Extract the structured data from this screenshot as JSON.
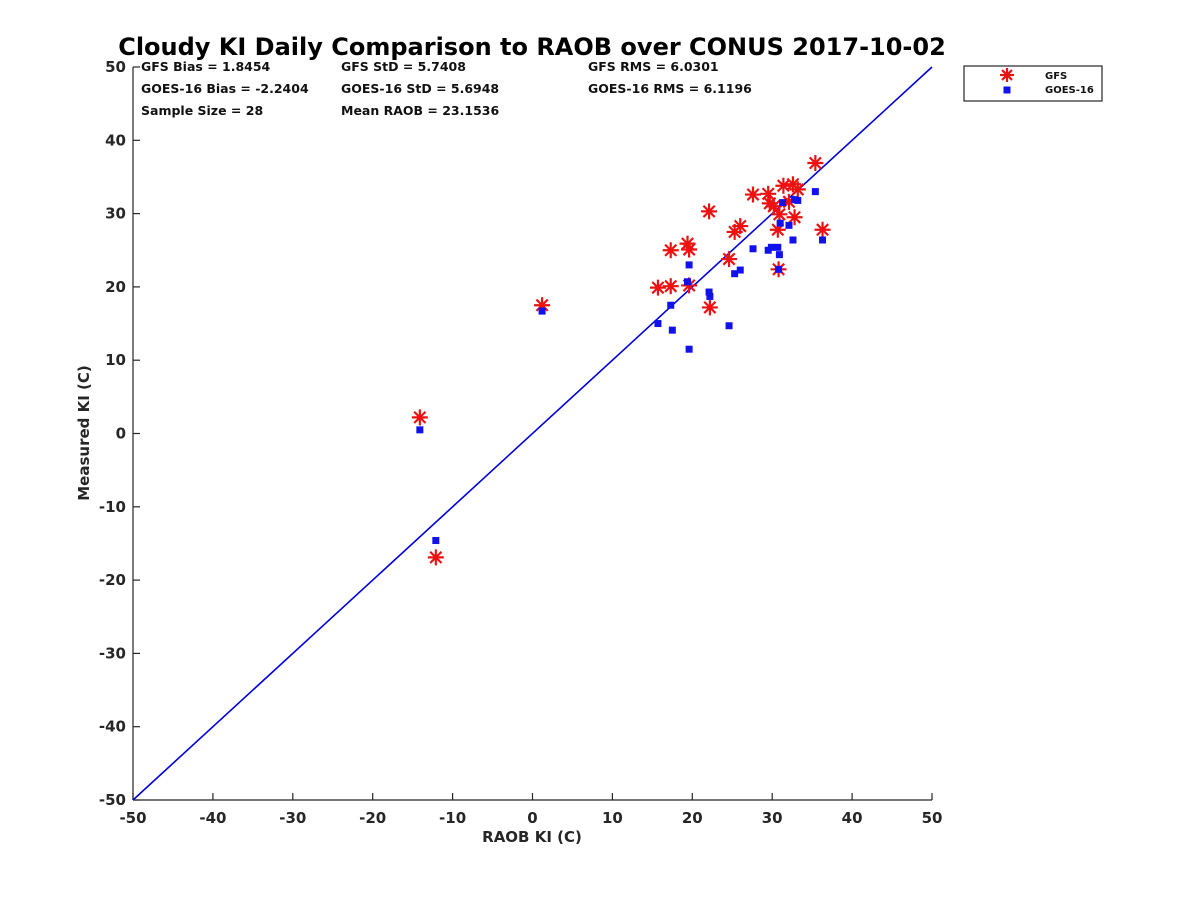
{
  "chart_data": {
    "type": "scatter",
    "title": "Cloudy KI Daily Comparison to RAOB over CONUS 2017-10-02",
    "xlabel": "RAOB KI (C)",
    "ylabel": "Measured KI (C)",
    "xlim": [
      -50,
      50
    ],
    "ylim": [
      -50,
      50
    ],
    "xticks": [
      "-50",
      "-40",
      "-30",
      "-20",
      "-10",
      "0",
      "10",
      "20",
      "30",
      "40",
      "50"
    ],
    "yticks": [
      "-50",
      "-40",
      "-30",
      "-20",
      "-10",
      "0",
      "10",
      "20",
      "30",
      "40",
      "50"
    ],
    "grid": false,
    "legend_position": "top-right-outside",
    "reference_line": {
      "x": [
        -50,
        50
      ],
      "y": [
        -50,
        50
      ],
      "color": "#0000dd"
    },
    "stats": [
      "GFS Bias = 1.8454",
      "GFS StD = 5.7408",
      "GFS RMS = 6.0301",
      "GOES-16 Bias = -2.2404",
      "GOES-16 StD = 5.6948",
      "GOES-16 RMS = 6.1196",
      "Sample Size = 28",
      "Mean RAOB = 23.1536"
    ],
    "series": [
      {
        "name": "GFS",
        "marker": "asterisk",
        "color": "#ee1111",
        "points": [
          [
            -14.1,
            2.2
          ],
          [
            -12.1,
            -16.9
          ],
          [
            1.2,
            17.5
          ],
          [
            15.7,
            19.9
          ],
          [
            17.3,
            20.1
          ],
          [
            17.3,
            25.0
          ],
          [
            19.4,
            25.9
          ],
          [
            19.6,
            25.1
          ],
          [
            19.6,
            20.2
          ],
          [
            22.1,
            30.3
          ],
          [
            22.2,
            17.2
          ],
          [
            24.6,
            23.8
          ],
          [
            25.3,
            27.5
          ],
          [
            26.0,
            28.3
          ],
          [
            27.6,
            32.6
          ],
          [
            29.5,
            32.7
          ],
          [
            29.7,
            31.4
          ],
          [
            30.2,
            31.0
          ],
          [
            30.7,
            27.8
          ],
          [
            30.8,
            22.4
          ],
          [
            30.9,
            29.9
          ],
          [
            31.4,
            33.8
          ],
          [
            32.1,
            31.6
          ],
          [
            32.6,
            34.0
          ],
          [
            32.8,
            29.5
          ],
          [
            33.2,
            33.3
          ],
          [
            35.4,
            36.9
          ],
          [
            36.3,
            27.8
          ]
        ]
      },
      {
        "name": "GOES-16",
        "marker": "square",
        "color": "#1111ee",
        "points": [
          [
            -14.1,
            0.5
          ],
          [
            -12.1,
            -14.6
          ],
          [
            1.2,
            16.7
          ],
          [
            15.7,
            15.0
          ],
          [
            17.3,
            17.5
          ],
          [
            17.5,
            14.1
          ],
          [
            19.4,
            20.7
          ],
          [
            19.6,
            23.0
          ],
          [
            19.6,
            11.5
          ],
          [
            22.1,
            19.3
          ],
          [
            22.2,
            18.7
          ],
          [
            24.6,
            14.7
          ],
          [
            25.3,
            21.8
          ],
          [
            26.0,
            22.3
          ],
          [
            27.6,
            25.2
          ],
          [
            29.5,
            25.0
          ],
          [
            29.9,
            25.4
          ],
          [
            30.7,
            25.4
          ],
          [
            30.8,
            22.4
          ],
          [
            30.9,
            24.4
          ],
          [
            31.0,
            28.7
          ],
          [
            31.3,
            31.5
          ],
          [
            32.1,
            28.4
          ],
          [
            32.6,
            26.4
          ],
          [
            32.8,
            31.9
          ],
          [
            33.2,
            31.8
          ],
          [
            35.4,
            33.0
          ],
          [
            36.3,
            26.4
          ]
        ]
      }
    ]
  }
}
